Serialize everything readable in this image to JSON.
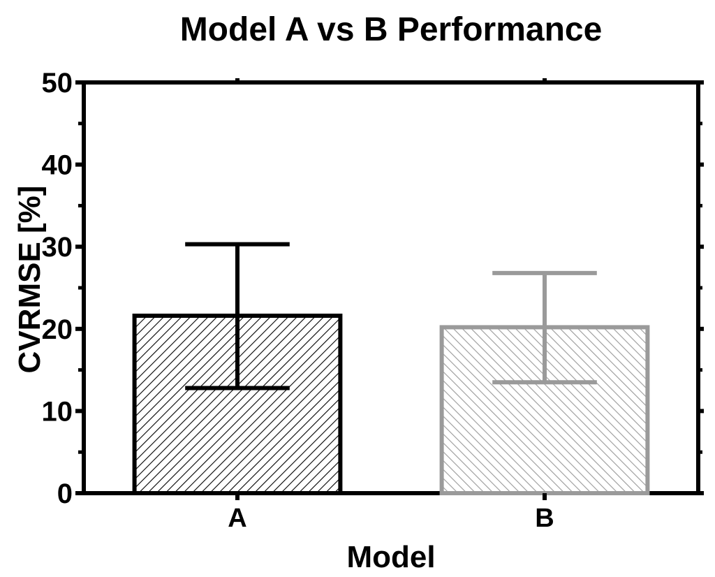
{
  "chart_data": {
    "type": "bar",
    "title": "Model A vs B Performance",
    "xlabel": "Model",
    "ylabel": "CVRMSE [%]",
    "categories": [
      "A",
      "B"
    ],
    "values": [
      21.6,
      20.2
    ],
    "error_low": [
      12.8,
      13.5
    ],
    "error_high": [
      30.3,
      26.8
    ],
    "ylim": [
      0,
      50
    ],
    "yticks": [
      "0",
      "10",
      "20",
      "30",
      "40",
      "50"
    ],
    "ytick_values": [
      0,
      10,
      20,
      30,
      40,
      50
    ],
    "grid": false,
    "bar_colors": [
      "#000000",
      "#9a9a9a"
    ],
    "bar_fill_pattern": "diagonal-hatch"
  }
}
